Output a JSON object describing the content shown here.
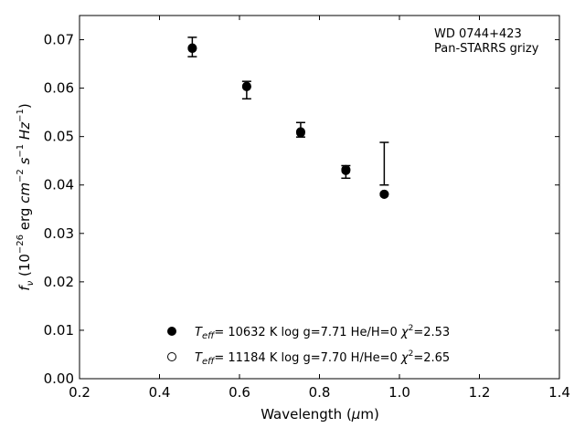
{
  "chart_data": {
    "type": "scatter",
    "title": "",
    "xlabel": "Wavelength (μm)",
    "ylabel": "f_ν (10^-26 erg cm^-2 s^-1 Hz^-1)",
    "xlim": [
      0.2,
      1.4
    ],
    "ylim": [
      0.0,
      0.075
    ],
    "xticks": [
      "0.2",
      "0.4",
      "0.6",
      "0.8",
      "1.0",
      "1.2",
      "1.4"
    ],
    "yticks": [
      "0.00",
      "0.01",
      "0.02",
      "0.03",
      "0.04",
      "0.05",
      "0.06",
      "0.07"
    ],
    "grid": false,
    "legend_position": "bottom-center",
    "annotation": [
      "WD 0744+423",
      "Pan-STARRS grizy"
    ],
    "observed": {
      "x": [
        0.482,
        0.618,
        0.753,
        0.866,
        0.962
      ],
      "y": [
        0.0685,
        0.0596,
        0.0514,
        0.0427,
        0.0444
      ],
      "yerr_low": [
        0.002,
        0.0018,
        0.0015,
        0.0013,
        0.0044
      ],
      "yerr_high": [
        0.002,
        0.0018,
        0.0015,
        0.0013,
        0.0044
      ]
    },
    "series": [
      {
        "name": "T_eff= 10632 K  log g=7.71  He/H=0  χ²=2.53",
        "label_parts": {
          "t": "T",
          "sub": "eff",
          "rest": "= 10632 K  log g=7.71  He/H=0  ",
          "chi": "χ",
          "chi_rest": "=2.53"
        },
        "marker": "filled-circle",
        "x": [
          0.482,
          0.618,
          0.753,
          0.866,
          0.962
        ],
        "y": [
          0.0682,
          0.0604,
          0.0508,
          0.043,
          0.0381
        ]
      },
      {
        "name": "T_eff= 11184 K  log g=7.70  H/He=0  χ²=2.65",
        "label_parts": {
          "t": "T",
          "sub": "eff",
          "rest": "= 11184 K  log g=7.70  H/He=0  ",
          "chi": "χ",
          "chi_rest": "=2.65"
        },
        "marker": "open-circle",
        "x": [
          0.482,
          0.618,
          0.753,
          0.866,
          0.962
        ],
        "y": [
          0.0683,
          0.0603,
          0.051,
          0.0432,
          0.0381
        ]
      }
    ]
  }
}
